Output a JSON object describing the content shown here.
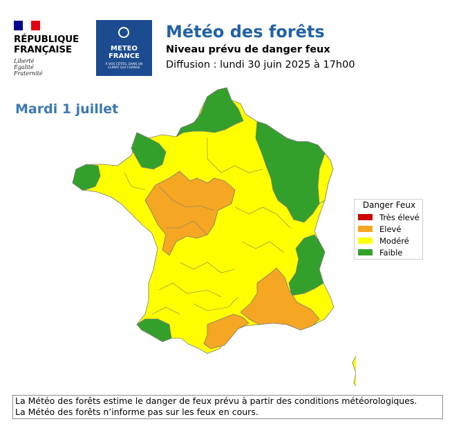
{
  "header": {
    "rf_line1": "RÉPUBLIQUE",
    "rf_line2": "FRANÇAISE",
    "rf_motto": [
      "Liberté",
      "Égalité",
      "Fraternité"
    ],
    "flag_colors": [
      "#000091",
      "#ffffff",
      "#e1000f"
    ],
    "mf_line1": "METEO",
    "mf_line2": "FRANCE",
    "mf_tagline1": "À VOS CÔTÉS, DANS UN",
    "mf_tagline2": "CLIMAT QUI CHANGE",
    "title": "Météo des forêts",
    "subtitle": "Niveau prévu de danger feux",
    "diffusion": "Diffusion : lundi 30 juin 2025 à 17h00"
  },
  "map": {
    "day": "Mardi 1 juillet",
    "colors": {
      "tres_eleve": "#cc0000",
      "eleve": "#f5a623",
      "modere": "#ffff00",
      "faible": "#33a02c"
    }
  },
  "legend": {
    "title": "Danger Feux",
    "items": [
      {
        "label": "Très élevé",
        "color": "#cc0000"
      },
      {
        "label": "Elevé",
        "color": "#f5a623"
      },
      {
        "label": "Modéré",
        "color": "#ffff00"
      },
      {
        "label": "Faible",
        "color": "#33a02c"
      }
    ]
  },
  "footer": {
    "line1": "La Météo des forêts estime le danger de feux prévu à partir des conditions météorologiques.",
    "line2": "La Météo des forêts n’informe pas sur les feux en cours."
  }
}
